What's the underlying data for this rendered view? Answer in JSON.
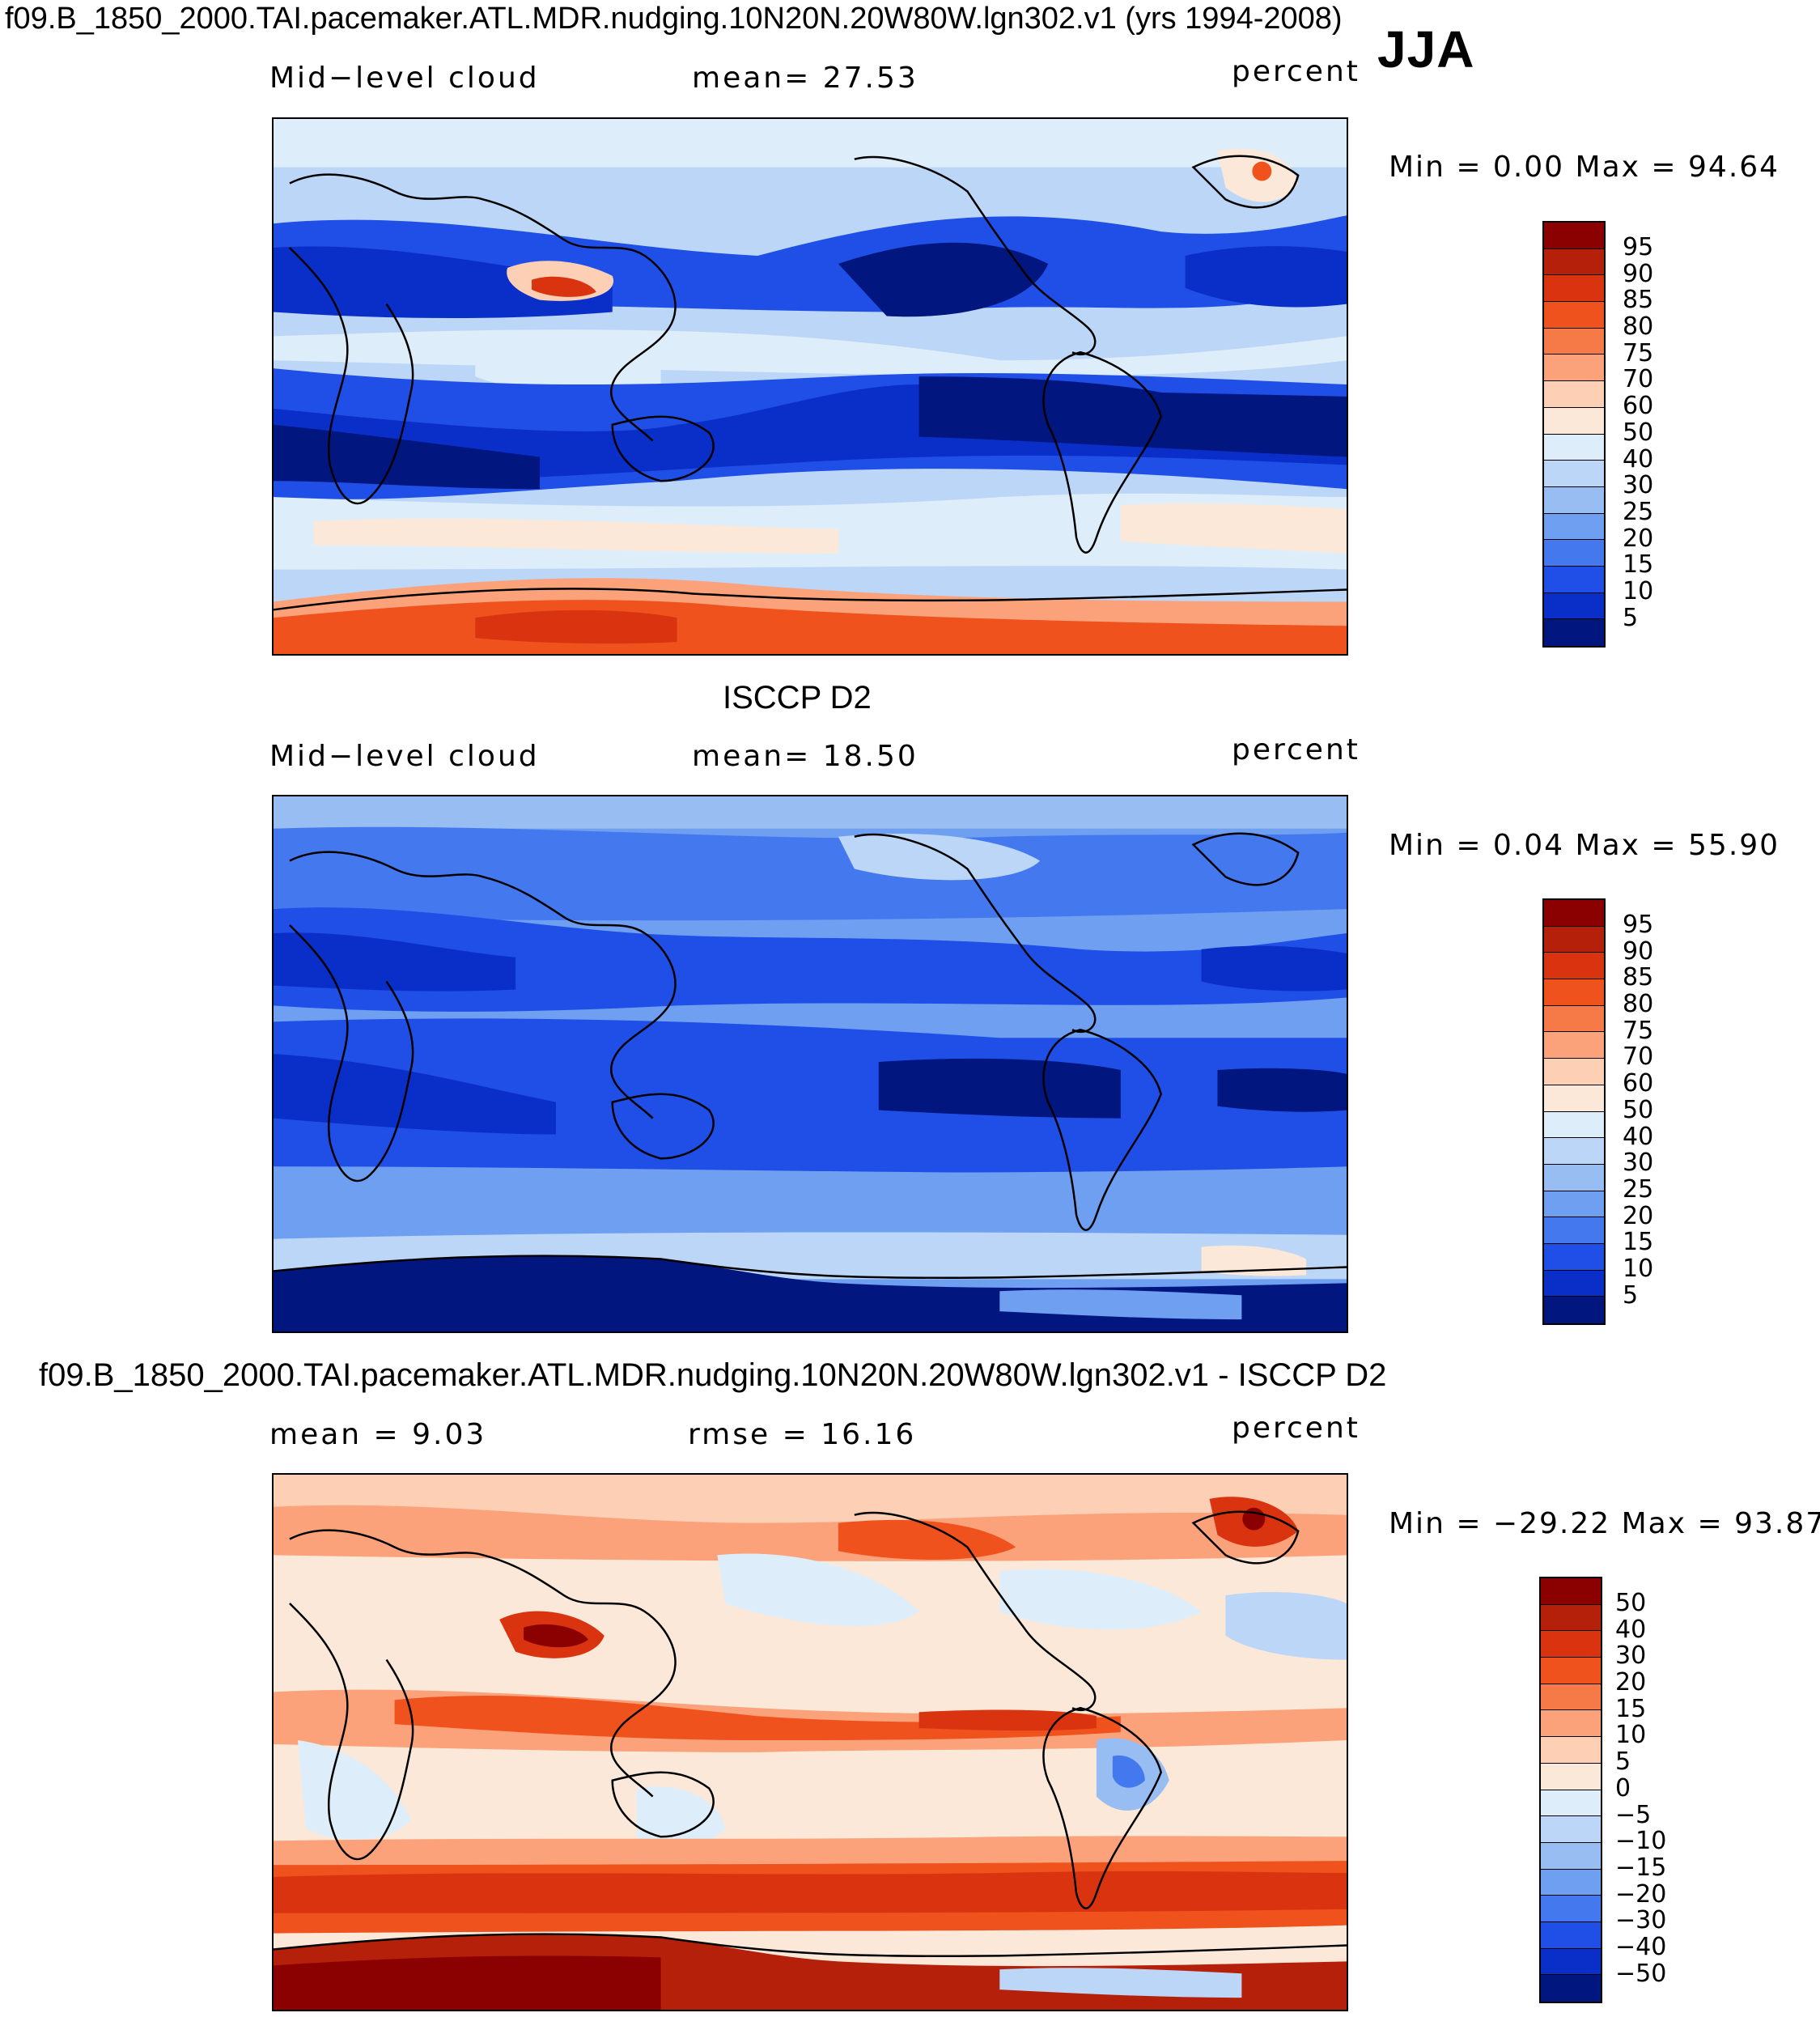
{
  "figure": {
    "title": "f09.B_1850_2000.TAI.pacemaker.ATL.MDR.nudging.10N20N.20W80W.lgn302.v1 (yrs 1994-2008)",
    "season": "JJA"
  },
  "panels": [
    {
      "id": "model",
      "variable": "Mid−level cloud",
      "stat_text": "mean=   27.53",
      "units": "percent",
      "min_max_text": "Min  =     0.00  Max  =    94.64",
      "colorbar_labels": [
        "95",
        "90",
        "85",
        "80",
        "75",
        "70",
        "60",
        "50",
        "40",
        "30",
        "25",
        "20",
        "15",
        "10",
        "5"
      ]
    },
    {
      "id": "obs",
      "panel_title": "ISCCP D2",
      "variable": "Mid−level cloud",
      "stat_text": "mean=   18.50",
      "units": "percent",
      "min_max_text": "Min  =     0.04  Max  =    55.90",
      "colorbar_labels": [
        "95",
        "90",
        "85",
        "80",
        "75",
        "70",
        "60",
        "50",
        "40",
        "30",
        "25",
        "20",
        "15",
        "10",
        "5"
      ]
    },
    {
      "id": "diff",
      "panel_title": "f09.B_1850_2000.TAI.pacemaker.ATL.MDR.nudging.10N20N.20W80W.lgn302.v1 - ISCCP D2",
      "variable": "mean  =     9.03",
      "stat_text": "rmse  =    16.16",
      "units": "percent",
      "min_max_text": "Min  = −29.22  Max  =    93.87",
      "colorbar_labels": [
        "50",
        "40",
        "30",
        "20",
        "15",
        "10",
        "5",
        "0",
        "−5",
        "−10",
        "−15",
        "−20",
        "−30",
        "−40",
        "−50"
      ]
    }
  ],
  "colors": {
    "scale_16": [
      "#8b0000",
      "#b5200a",
      "#d9340f",
      "#f0521e",
      "#f57a48",
      "#fba27a",
      "#fdd0b5",
      "#fbe8d8",
      "#ddeefa",
      "#bcd6f7",
      "#97bdf3",
      "#6e9ff0",
      "#4478ee",
      "#1f4fe6",
      "#0a2fc9",
      "#01167f"
    ]
  }
}
